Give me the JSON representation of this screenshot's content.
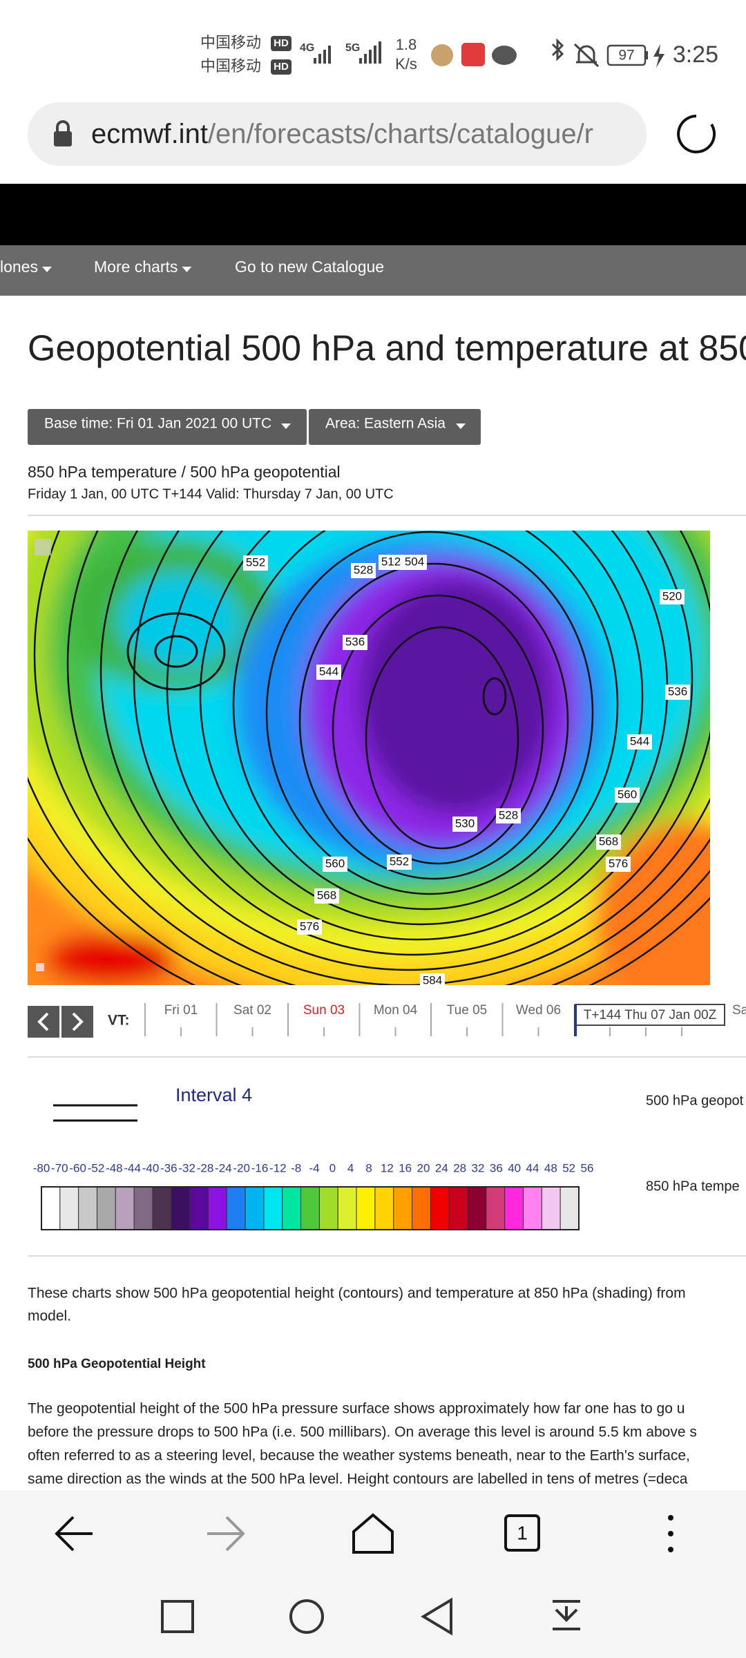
{
  "status_bar": {
    "carrier_1": "中国移动",
    "carrier_2": "中国移动",
    "hd": "HD",
    "net_1": "4G",
    "net_2": "5G",
    "speed": "1.8",
    "speed_unit": "K/s",
    "battery": "97",
    "time": "3:25"
  },
  "url_bar": {
    "host": "ecmwf.int",
    "path": "/en/forecasts/charts/catalogue/r"
  },
  "nav": {
    "items": [
      "lones",
      "More charts",
      "Go to new Catalogue"
    ]
  },
  "page": {
    "title": "Geopotential 500 hPa and temperature at 850",
    "base_time": "Base time: Fri 01 Jan 2021 00 UTC",
    "area": "Area: Eastern Asia",
    "subtitle": "850 hPa temperature / 500 hPa geopotential",
    "valid": "Friday 1 Jan, 00 UTC T+144 Valid: Thursday 7 Jan, 00 UTC"
  },
  "map": {
    "labels": [
      "552",
      "528",
      "512",
      "504",
      "536",
      "544",
      "560",
      "552",
      "568",
      "576",
      "584",
      "520",
      "536",
      "544",
      "560",
      "568",
      "576",
      "528",
      "530"
    ]
  },
  "timeline": {
    "vt_label": "VT:",
    "days": [
      {
        "label": "Fri 01",
        "color": "#666666"
      },
      {
        "label": "Sat 02",
        "color": "#666666"
      },
      {
        "label": "Sun 03",
        "color": "#e02020"
      },
      {
        "label": "Mon 04",
        "color": "#666666"
      },
      {
        "label": "Tue 05",
        "color": "#666666"
      },
      {
        "label": "Wed 06",
        "color": "#666666"
      }
    ],
    "current": "T+144 Thu 07 Jan 00Z",
    "next": "Sa"
  },
  "legend": {
    "contour_title": "Interval 4",
    "contour_name": "500 hPa geopot",
    "shading_name": "850 hPa tempe",
    "scale_labels": [
      "-80",
      "-70",
      "-60",
      "-52",
      "-48",
      "-44",
      "-40",
      "-36",
      "-32",
      "-28",
      "-24",
      "-20",
      "-16",
      "-12",
      "-8",
      "-4",
      "0",
      "4",
      "8",
      "12",
      "16",
      "20",
      "24",
      "28",
      "32",
      "36",
      "40",
      "44",
      "48",
      "52",
      "56"
    ],
    "palette": [
      "#ffffff",
      "#e6e6e6",
      "#c8c8c8",
      "#a8a8a8",
      "#b9a0bd",
      "#7f6a85",
      "#4d3350",
      "#3b1060",
      "#5a0a9a",
      "#8c14e0",
      "#1e7df0",
      "#00b4f0",
      "#00e6f0",
      "#00e6a0",
      "#50c83c",
      "#a0dc28",
      "#dcf02d",
      "#fff000",
      "#ffd200",
      "#ffa000",
      "#ff6e00",
      "#f00000",
      "#c8001e",
      "#8c0032",
      "#d23c78",
      "#ff28dc",
      "#ff82f0",
      "#f0c8f0",
      "#e6e6e6"
    ]
  },
  "text": {
    "intro": [
      "These charts show 500 hPa geopotential height (contours) and temperature at 850 hPa (shading) from",
      "model."
    ],
    "heading": "500 hPa Geopotential Height",
    "body": [
      "The geopotential height of the 500 hPa pressure surface shows approximately how far one has to go u",
      "before the pressure drops to 500 hPa (i.e. 500 millibars). On average this level is around 5.5 km above s",
      "often referred to as a steering level, because the weather systems beneath, near to the Earth's surface,",
      "same direction as the winds at the 500 hPa level. Height contours are labelled in tens of metres (=deca"
    ]
  },
  "bottom_bar": {
    "tabs": "1"
  }
}
